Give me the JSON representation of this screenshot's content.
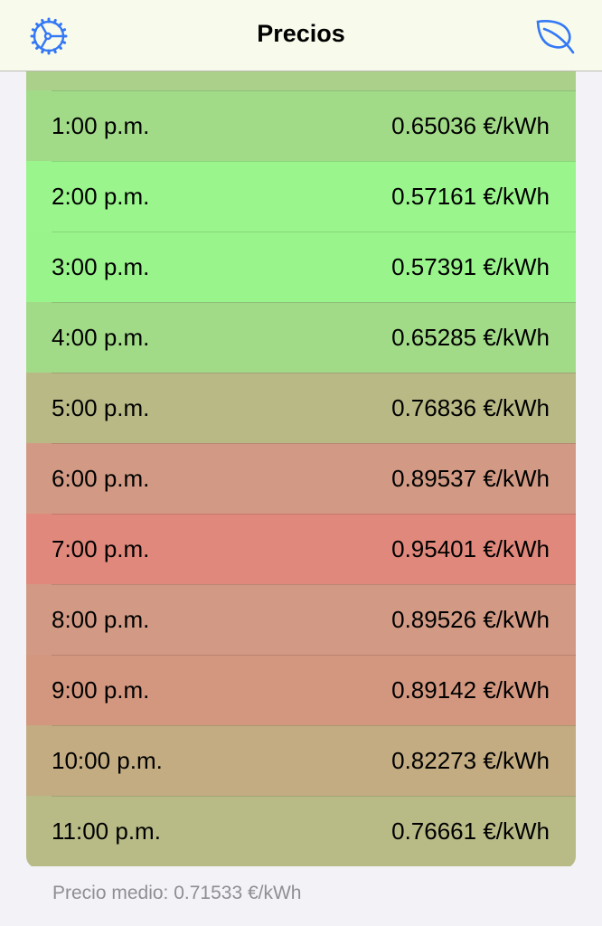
{
  "header": {
    "title": "Precios",
    "left_icon": "gear-icon",
    "right_icon": "leaf-icon",
    "accent": "#3478f6"
  },
  "rows": [
    {
      "time": "",
      "price": "",
      "color": "#abd08a"
    },
    {
      "time": "1:00 p.m.",
      "price": "0.65036 €/kWh",
      "color": "#a2db88"
    },
    {
      "time": "2:00 p.m.",
      "price": "0.57161 €/kWh",
      "color": "#9af58c"
    },
    {
      "time": "3:00 p.m.",
      "price": "0.57391 €/kWh",
      "color": "#9af48c"
    },
    {
      "time": "4:00 p.m.",
      "price": "0.65285 €/kWh",
      "color": "#a2db88"
    },
    {
      "time": "5:00 p.m.",
      "price": "0.76836 €/kWh",
      "color": "#b9b986"
    },
    {
      "time": "6:00 p.m.",
      "price": "0.89537 €/kWh",
      "color": "#d29a84"
    },
    {
      "time": "7:00 p.m.",
      "price": "0.95401 €/kWh",
      "color": "#e0887b"
    },
    {
      "time": "8:00 p.m.",
      "price": "0.89526 €/kWh",
      "color": "#d29a84"
    },
    {
      "time": "9:00 p.m.",
      "price": "0.89142 €/kWh",
      "color": "#d3977f"
    },
    {
      "time": "10:00 p.m.",
      "price": "0.82273 €/kWh",
      "color": "#c3ac82"
    },
    {
      "time": "11:00 p.m.",
      "price": "0.76661 €/kWh",
      "color": "#b8bb86"
    }
  ],
  "footer": {
    "average": "Precio medio: 0.71533 €/kWh"
  }
}
